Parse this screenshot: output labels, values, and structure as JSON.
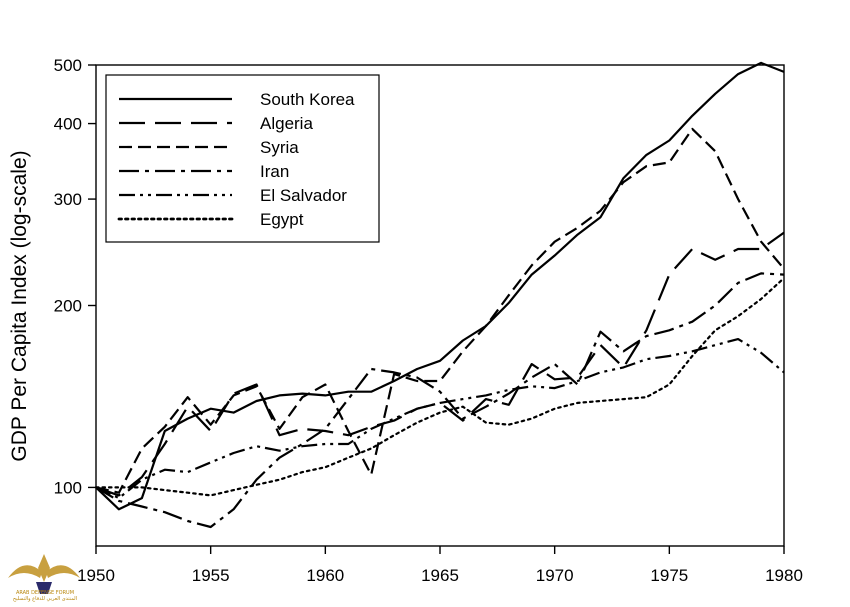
{
  "chart_data": {
    "type": "line",
    "title": "",
    "xlabel": "",
    "ylabel": "GDP Per Capita Index (log-scale)",
    "yscale": "log",
    "xlim": [
      1950,
      1980
    ],
    "ylim": [
      80,
      500
    ],
    "x_ticks": [
      1950,
      1955,
      1960,
      1965,
      1970,
      1975,
      1980
    ],
    "y_ticks": [
      100,
      200,
      300,
      400,
      500
    ],
    "legend_position": "top-left",
    "series": [
      {
        "name": "South Korea",
        "dash": "solid",
        "x": [
          1950,
          1951,
          1952,
          1953,
          1954,
          1955,
          1956,
          1957,
          1958,
          1959,
          1960,
          1961,
          1962,
          1963,
          1964,
          1965,
          1966,
          1967,
          1968,
          1969,
          1970,
          1971,
          1972,
          1973,
          1974,
          1975,
          1976,
          1977,
          1978,
          1979,
          1980
        ],
        "y": [
          100,
          92,
          96,
          124,
          130,
          135,
          133,
          139,
          142,
          143,
          142,
          144,
          144,
          150,
          157,
          162,
          175,
          185,
          202,
          225,
          242,
          262,
          280,
          325,
          355,
          375,
          412,
          448,
          483,
          504,
          487
        ]
      },
      {
        "name": "Algeria",
        "dash": "long-dash",
        "x": [
          1950,
          1951,
          1952,
          1953,
          1954,
          1955,
          1956,
          1957,
          1958,
          1959,
          1960,
          1961,
          1962,
          1963,
          1964,
          1965,
          1966,
          1967,
          1968,
          1969,
          1970,
          1971,
          1972,
          1973,
          1974,
          1975,
          1976,
          1977,
          1978,
          1979,
          1980
        ],
        "y": [
          100,
          97,
          104,
          118,
          136,
          124,
          143,
          148,
          122,
          125,
          124,
          122,
          126,
          129,
          135,
          138,
          129,
          140,
          137,
          160,
          151,
          152,
          172,
          158,
          182,
          225,
          248,
          238,
          248,
          248,
          264
        ]
      },
      {
        "name": "Syria",
        "dash": "medium-dash",
        "x": [
          1950,
          1951,
          1952,
          1953,
          1954,
          1955,
          1956,
          1957,
          1958,
          1959,
          1960,
          1961,
          1962,
          1963,
          1964,
          1965,
          1966,
          1967,
          1968,
          1969,
          1970,
          1971,
          1972,
          1973,
          1974,
          1975,
          1976,
          1977,
          1978,
          1979,
          1980
        ],
        "y": [
          100,
          98,
          116,
          126,
          141,
          127,
          142,
          147,
          125,
          141,
          148,
          124,
          105,
          154,
          150,
          150,
          168,
          185,
          208,
          233,
          255,
          269,
          287,
          320,
          340,
          345,
          392,
          360,
          300,
          255,
          230
        ]
      },
      {
        "name": "Iran",
        "dash": "dash-dot",
        "x": [
          1950,
          1951,
          1952,
          1953,
          1954,
          1955,
          1956,
          1957,
          1958,
          1959,
          1960,
          1961,
          1962,
          1963,
          1964,
          1965,
          1966,
          1967,
          1968,
          1969,
          1970,
          1971,
          1972,
          1973,
          1974,
          1975,
          1976,
          1977,
          1978,
          1979,
          1980
        ],
        "y": [
          100,
          95,
          93,
          91,
          88,
          86,
          92,
          103,
          112,
          118,
          125,
          140,
          157,
          155,
          152,
          144,
          130,
          136,
          143,
          152,
          160,
          148,
          181,
          168,
          178,
          182,
          188,
          200,
          218,
          226,
          225
        ]
      },
      {
        "name": "El Salvador",
        "dash": "dash-dot-dot",
        "x": [
          1950,
          1951,
          1952,
          1953,
          1954,
          1955,
          1956,
          1957,
          1958,
          1959,
          1960,
          1961,
          1962,
          1963,
          1964,
          1965,
          1966,
          1967,
          1968,
          1969,
          1970,
          1971,
          1972,
          1973,
          1974,
          1975,
          1976,
          1977,
          1978,
          1979,
          1980
        ],
        "y": [
          100,
          96,
          103,
          107,
          106,
          110,
          114,
          117,
          115,
          117,
          118,
          118,
          125,
          130,
          135,
          138,
          140,
          142,
          145,
          147,
          146,
          150,
          155,
          158,
          163,
          165,
          168,
          172,
          176,
          167,
          155
        ]
      },
      {
        "name": "Egypt",
        "dash": "dotted",
        "x": [
          1950,
          1951,
          1952,
          1953,
          1954,
          1955,
          1956,
          1957,
          1958,
          1959,
          1960,
          1961,
          1962,
          1963,
          1964,
          1965,
          1966,
          1967,
          1968,
          1969,
          1970,
          1971,
          1972,
          1973,
          1974,
          1975,
          1976,
          1977,
          1978,
          1979,
          1980
        ],
        "y": [
          100,
          100,
          100,
          99,
          98,
          97,
          99,
          101,
          103,
          106,
          108,
          112,
          116,
          122,
          128,
          133,
          136,
          128,
          127,
          130,
          135,
          138,
          139,
          140,
          141,
          148,
          165,
          182,
          192,
          205,
          222
        ]
      }
    ]
  },
  "watermark": {
    "text_en": "ARAB DEFENSE FORUM",
    "text_ar": "المنتدى العربي للدفاع والتسليح",
    "gold": "#c8a040"
  }
}
